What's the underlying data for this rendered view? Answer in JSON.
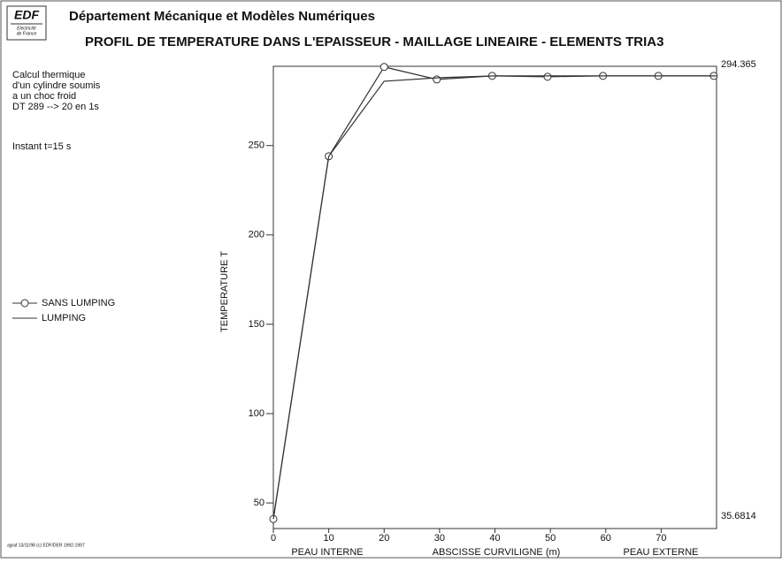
{
  "header": {
    "logo": "EDF",
    "logo_sub": [
      "Electricité",
      "de France"
    ],
    "department": "Département Mécanique et Modèles Numériques"
  },
  "notes": [
    "Calcul thermique",
    "d'un cylindre soumis",
    "a un choc froid",
    "DT 289 --> 20 en 1s",
    "Instant t=15 s"
  ],
  "footer": "agraf 13/11/98 (c) EDF/DER 1992-1997",
  "chart_data": {
    "type": "line",
    "title": "PROFIL DE TEMPERATURE DANS L'EPAISSEUR - MAILLAGE LINEAIRE - ELEMENTS TRIA3",
    "x_label": "ABSCISSE CURVILIGNE (m)",
    "x_left_label": "PEAU INTERNE",
    "x_right_label": "PEAU EXTERNE",
    "y_label": "TEMPERATURE T",
    "xlim": [
      0,
      80
    ],
    "xticks": [
      0,
      10,
      20,
      30,
      40,
      50,
      60,
      70
    ],
    "ylim": [
      35.6814,
      294.365
    ],
    "yticks": [
      50,
      100,
      150,
      200,
      250
    ],
    "series": [
      {
        "name": "SANS LUMPING",
        "color": "#333333",
        "marker": "circle",
        "x": [
          0,
          10,
          20,
          29.5,
          39.5,
          49.5,
          59.5,
          69.5,
          79.5
        ],
        "values": [
          41,
          244,
          294,
          287,
          289,
          288.5,
          289,
          289,
          289
        ]
      },
      {
        "name": "LUMPING",
        "color": "#333333",
        "marker": "none",
        "x": [
          0,
          10,
          20,
          30,
          40,
          50,
          60,
          70,
          80
        ],
        "values": [
          41,
          244,
          286,
          288,
          289,
          289,
          289,
          289,
          289
        ]
      }
    ]
  }
}
